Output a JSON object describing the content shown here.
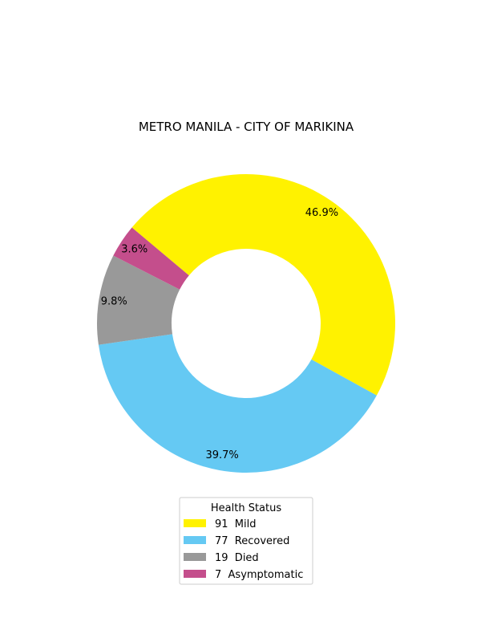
{
  "chart_data": {
    "type": "pie",
    "title": "METRO MANILA - CITY OF MARIKINA",
    "donut": true,
    "start_angle_deg": 140,
    "direction": "clockwise",
    "slices": [
      {
        "label": "Mild",
        "value": 91,
        "percent_label": "46.9%",
        "legend_label": "91  Mild",
        "color": "#FFF200"
      },
      {
        "label": "Recovered",
        "value": 77,
        "percent_label": "39.7%",
        "legend_label": "77  Recovered",
        "color": "#65C9F3"
      },
      {
        "label": "Died",
        "value": 19,
        "percent_label": "9.8%",
        "legend_label": "19  Died",
        "color": "#999999"
      },
      {
        "label": "Asymptomatic",
        "value": 7,
        "percent_label": "3.6%",
        "legend_label": "7  Asymptomatic",
        "color": "#C44E8C"
      }
    ],
    "legend": {
      "title": "Health Status",
      "placement": "bottom-center"
    }
  }
}
